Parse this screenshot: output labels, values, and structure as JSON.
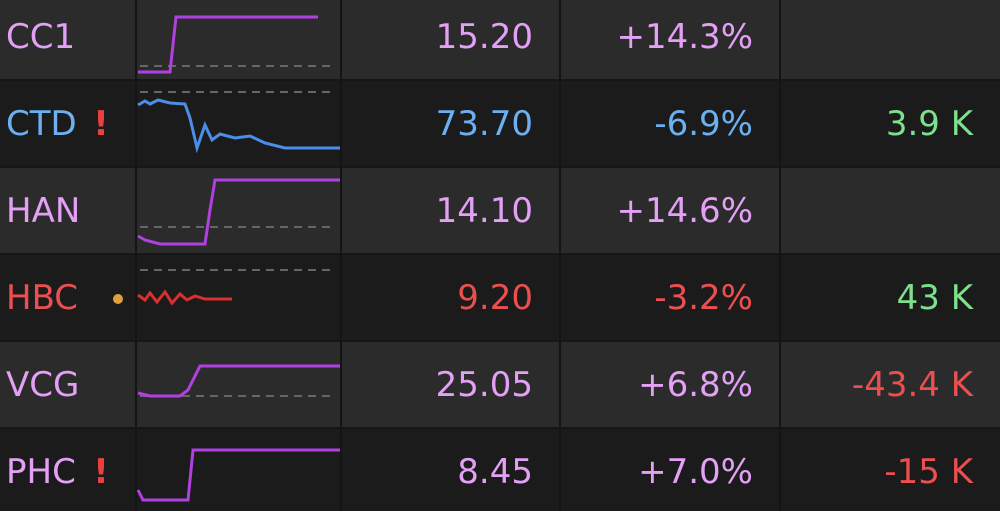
{
  "rows": [
    {
      "symbol": "CC1",
      "price": "15.20",
      "change": "+14.3%",
      "color": "#e3a0f5"
    },
    {
      "symbol": "CTD",
      "flag": "!",
      "price": "73.70",
      "change": "-6.9%",
      "volume": "3.9 K",
      "color": "#6cb0f2",
      "volume_color": "#7ce08c"
    },
    {
      "symbol": "HAN",
      "price": "14.10",
      "change": "+14.6%",
      "color": "#e3a0f5"
    },
    {
      "symbol": "HBC",
      "price": "9.20",
      "change": "-3.2%",
      "volume": "43 K",
      "color": "#ec4f4f",
      "volume_color": "#7ce08c"
    },
    {
      "symbol": "VCG",
      "price": "25.05",
      "change": "+6.8%",
      "volume": "-43.4 K",
      "color": "#e3a0f5",
      "volume_color": "#ec4f4f"
    },
    {
      "symbol": "PHC",
      "flag": "!",
      "price": "8.45",
      "change": "+7.0%",
      "volume": "-15 K",
      "color": "#e3a0f5",
      "volume_color": "#ec4f4f"
    }
  ]
}
